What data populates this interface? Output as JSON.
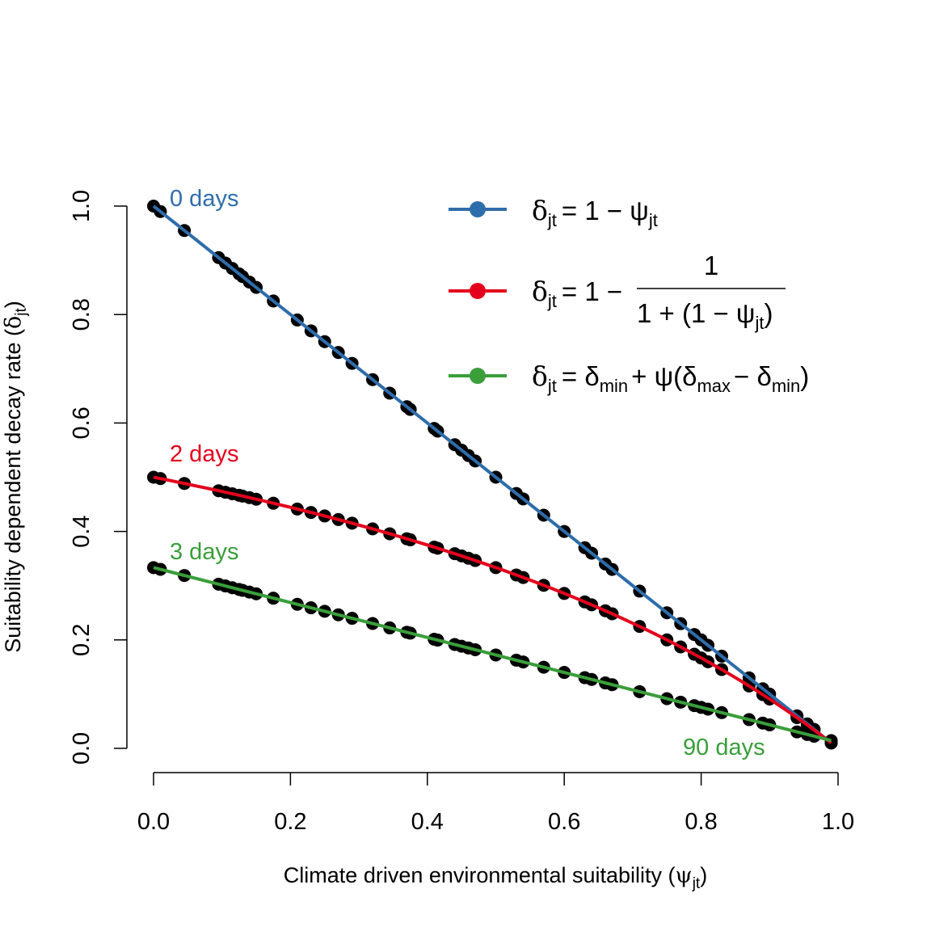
{
  "colors": {
    "blue": "#2E6DAB",
    "red": "#E4001C",
    "green": "#3A9E3A",
    "points": "#000000"
  },
  "axes": {
    "xlabel_main": "Climate driven environmental suitability (",
    "xlabel_sym": "ψ",
    "xlabel_sub": "jt",
    "xlabel_close": ")",
    "ylabel_main": "Suitability dependent decay rate (",
    "ylabel_sym": "δ",
    "ylabel_sub": "jt",
    "ylabel_close": ")"
  },
  "legend": {
    "blue": {
      "d": "δ",
      "jt": "jt",
      "eq": "= 1 − ψ",
      "psi_sub": "jt"
    },
    "red": {
      "d": "δ",
      "jt": "jt",
      "eq": "= 1 −",
      "num": "1",
      "den_a": "1 + (1 − ψ",
      "den_sub": "jt",
      "den_b": ")"
    },
    "green": {
      "d": "δ",
      "jt": "jt",
      "eq": "= δ",
      "min1": "min",
      "plus": "+ ψ(δ",
      "max": "max",
      "minus": "− δ",
      "min2": "min",
      "close": ")"
    }
  },
  "annotations": {
    "zero_days": "0 days",
    "two_days": "2 days",
    "three_days": "3 days",
    "ninety_days": "90 days"
  },
  "chart_data": {
    "type": "line",
    "xlabel": "Climate driven environmental suitability (ψjt)",
    "ylabel": "Suitability dependent decay rate (δjt)",
    "xlim": [
      0,
      1
    ],
    "ylim": [
      0,
      1
    ],
    "xticks": [
      "0.0",
      "0.2",
      "0.4",
      "0.6",
      "0.8",
      "1.0"
    ],
    "yticks": [
      "0.0",
      "0.2",
      "0.4",
      "0.6",
      "0.8",
      "1.0"
    ],
    "grid": false,
    "legend_position": "top-right",
    "x": [
      0,
      0.1,
      0.2,
      0.3,
      0.4,
      0.5,
      0.6,
      0.7,
      0.8,
      0.9,
      0.99
    ],
    "series": [
      {
        "name": "δjt = 1 − ψjt",
        "color": "blue",
        "values": [
          1.0,
          0.9,
          0.8,
          0.7,
          0.6,
          0.5,
          0.4,
          0.3,
          0.2,
          0.1,
          0.01
        ]
      },
      {
        "name": "δjt = 1 − 1/(1 + (1 − ψjt))",
        "color": "red",
        "values": [
          0.5,
          0.474,
          0.444,
          0.412,
          0.375,
          0.333,
          0.286,
          0.231,
          0.167,
          0.091,
          0.0099
        ]
      },
      {
        "name": "δjt = δmin + ψ(δmax − δmin)",
        "color": "green",
        "values": [
          0.333,
          0.301,
          0.269,
          0.238,
          0.206,
          0.174,
          0.142,
          0.11,
          0.078,
          0.046,
          0.014
        ]
      }
    ],
    "points_x": [
      0,
      0.01,
      0.045,
      0.095,
      0.105,
      0.115,
      0.125,
      0.13,
      0.14,
      0.15,
      0.175,
      0.21,
      0.23,
      0.25,
      0.27,
      0.29,
      0.32,
      0.345,
      0.37,
      0.375,
      0.41,
      0.415,
      0.44,
      0.45,
      0.46,
      0.47,
      0.5,
      0.53,
      0.54,
      0.57,
      0.6,
      0.63,
      0.64,
      0.66,
      0.67,
      0.71,
      0.75,
      0.77,
      0.79,
      0.8,
      0.81,
      0.83,
      0.87,
      0.89,
      0.9,
      0.94,
      0.955,
      0.965,
      0.99
    ]
  }
}
